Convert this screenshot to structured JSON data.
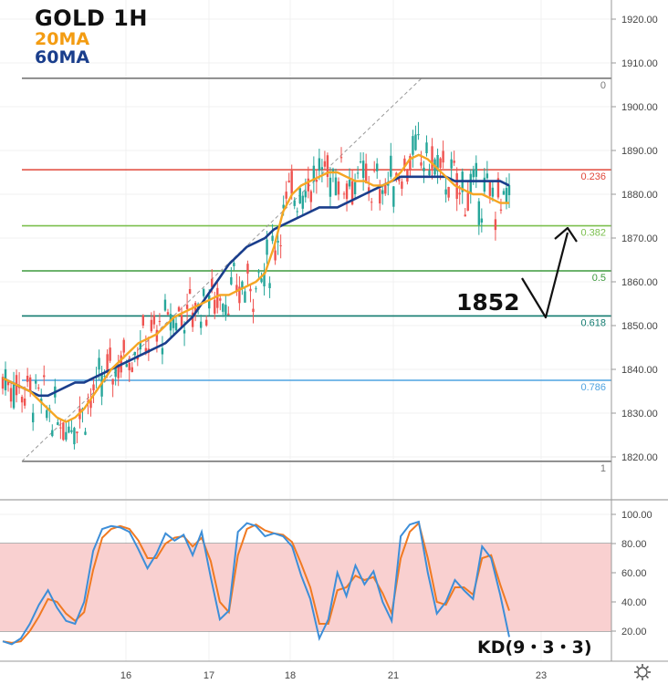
{
  "legend": {
    "title": "GOLD 1H",
    "ma20": "20MA",
    "ma60": "60MA"
  },
  "annotations": {
    "target": "1852",
    "kd": "KD(9・3・3)"
  },
  "colors": {
    "candle_up": "#26a69a",
    "candle_down": "#ef5350",
    "ma20": "#f5a623",
    "ma60": "#1a3e8c",
    "kd_k": "#3d8ed8",
    "kd_d": "#f07a22",
    "kd_band": "#f9d0d0"
  },
  "chart_data": [
    {
      "type": "candlestick",
      "title": "GOLD 1H",
      "ylim": [
        1810,
        1925
      ],
      "y_ticks": [
        "1820.00",
        "1830.00",
        "1840.00",
        "1850.00",
        "1860.00",
        "1870.00",
        "1880.00",
        "1890.00",
        "1900.00",
        "1910.00",
        "1920.00"
      ],
      "x_ticks": [
        "16",
        "17",
        "18",
        "21",
        "23"
      ],
      "fibonacci": [
        {
          "level": "0",
          "price": 1906.5,
          "color": "#787878"
        },
        {
          "level": "0.236",
          "price": 1885.6,
          "color": "#e0473a"
        },
        {
          "level": "0.382",
          "price": 1872.8,
          "color": "#7bbf4e"
        },
        {
          "level": "0.5",
          "price": 1862.5,
          "color": "#3d9a3d"
        },
        {
          "level": "0.618",
          "price": 1852.2,
          "color": "#117a6f"
        },
        {
          "level": "0.786",
          "price": 1837.5,
          "color": "#4fa3e0"
        },
        {
          "level": "1",
          "price": 1819.0,
          "color": "#787878"
        }
      ],
      "series": [
        {
          "name": "20MA",
          "values": [
            1838,
            1837,
            1836,
            1835,
            1833,
            1831,
            1829,
            1828,
            1829,
            1831,
            1834,
            1837,
            1840,
            1842,
            1844,
            1846,
            1847,
            1848,
            1850,
            1852,
            1853,
            1854,
            1855,
            1856,
            1857,
            1857,
            1858,
            1859,
            1860,
            1862,
            1868,
            1876,
            1880,
            1882,
            1883,
            1884,
            1885,
            1885,
            1884,
            1883,
            1883,
            1882,
            1882,
            1883,
            1885,
            1888,
            1889,
            1888,
            1886,
            1884,
            1882,
            1881,
            1880,
            1880,
            1879,
            1878,
            1878
          ]
        },
        {
          "name": "60MA",
          "values": [
            1838,
            1837,
            1836,
            1835,
            1834,
            1834,
            1835,
            1836,
            1837,
            1837,
            1838,
            1839,
            1840,
            1841,
            1842,
            1843,
            1844,
            1845,
            1846,
            1848,
            1850,
            1852,
            1855,
            1858,
            1861,
            1864,
            1866,
            1868,
            1869,
            1870,
            1872,
            1873,
            1874,
            1875,
            1876,
            1877,
            1877,
            1877,
            1878,
            1879,
            1880,
            1881,
            1882,
            1883,
            1884,
            1884,
            1884,
            1884,
            1884,
            1884,
            1883,
            1883,
            1883,
            1883,
            1883,
            1883,
            1882
          ]
        }
      ]
    },
    {
      "type": "line",
      "title": "KD(9・3・3)",
      "ylim": [
        10,
        105
      ],
      "y_ticks": [
        "20.00",
        "40.00",
        "60.00",
        "80.00",
        "100.00"
      ],
      "band": [
        20,
        80
      ],
      "series": [
        {
          "name": "K",
          "values": [
            13,
            11,
            15,
            25,
            38,
            48,
            36,
            27,
            25,
            40,
            75,
            90,
            92,
            91,
            88,
            76,
            63,
            73,
            87,
            82,
            86,
            72,
            88,
            57,
            28,
            34,
            88,
            94,
            92,
            85,
            87,
            85,
            78,
            58,
            42,
            15,
            28,
            60,
            44,
            65,
            52,
            61,
            40,
            27,
            85,
            93,
            95,
            60,
            32,
            40,
            55,
            48,
            42,
            78,
            70,
            45,
            16
          ]
        },
        {
          "name": "D",
          "values": [
            13,
            12,
            13,
            20,
            30,
            42,
            40,
            32,
            27,
            33,
            62,
            84,
            90,
            92,
            90,
            82,
            70,
            70,
            80,
            84,
            85,
            78,
            84,
            68,
            40,
            33,
            72,
            90,
            93,
            89,
            87,
            86,
            81,
            66,
            50,
            25,
            25,
            48,
            50,
            58,
            55,
            57,
            46,
            32,
            70,
            88,
            94,
            70,
            40,
            38,
            50,
            50,
            45,
            70,
            72,
            52,
            34
          ]
        }
      ]
    }
  ]
}
